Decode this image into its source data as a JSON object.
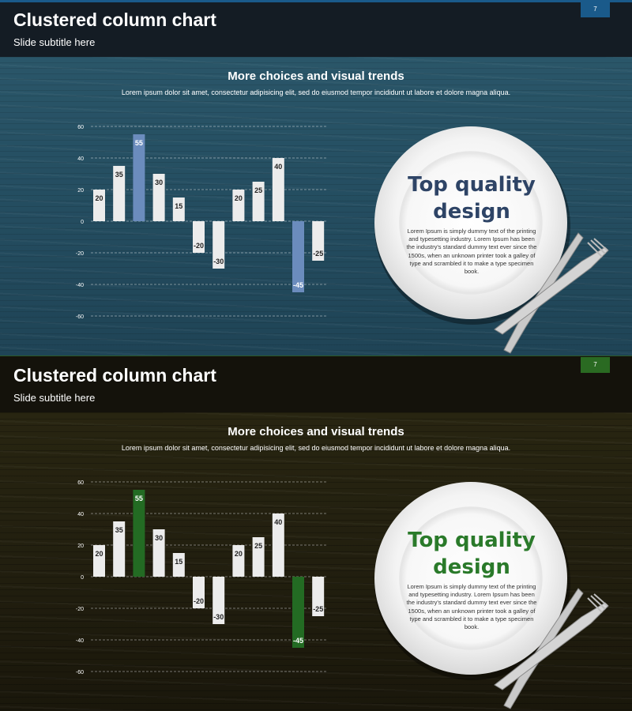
{
  "slides": [
    {
      "theme": "blue",
      "title": "Clustered column chart",
      "subtitle": "Slide subtitle here",
      "page_number": "7",
      "heading": "More choices and visual trends",
      "description": "Lorem ipsum dolor sit amet, consectetur adipisicing elit, sed do eiusmod tempor incididunt ut labore et dolore magna aliqua.",
      "plate_title": "Top quality design",
      "plate_body": "Lorem Ipsum is simply dummy text of the printing and typesetting industry. Lorem Ipsum has been the industry's standard dummy text ever since the 1500s, when an unknown printer took a galley of type and scrambled it to make a type specimen book.",
      "colors": {
        "accent": "#6b8cbd",
        "bar": "#ececec",
        "header": "#141c24",
        "page_badge": "#1a5a8a"
      }
    },
    {
      "theme": "green",
      "title": "Clustered column chart",
      "subtitle": "Slide subtitle here",
      "page_number": "7",
      "heading": "More choices and visual trends",
      "description": "Lorem ipsum dolor sit amet, consectetur adipisicing elit, sed do eiusmod tempor incididunt ut labore et dolore magna aliqua.",
      "plate_title": "Top quality design",
      "plate_body": "Lorem Ipsum is simply dummy text of the printing and typesetting industry. Lorem Ipsum has been the industry's standard dummy text ever since the 1500s, when an unknown printer took a galley of type and scrambled it to make a type specimen book.",
      "colors": {
        "accent": "#236b23",
        "bar": "#ececec",
        "header": "#14120b",
        "page_badge": "#2a6a22"
      }
    }
  ],
  "chart_data": [
    {
      "type": "bar",
      "values": [
        20,
        35,
        55,
        30,
        15,
        -20,
        -30,
        20,
        25,
        40,
        -45,
        -25
      ],
      "highlighted_indices": [
        2,
        10
      ],
      "yticks": [
        60,
        40,
        20,
        0,
        -20,
        -40,
        -60
      ],
      "ylim": [
        -60,
        60
      ],
      "grid": true,
      "data_labels": true
    },
    {
      "type": "bar",
      "values": [
        20,
        35,
        55,
        30,
        15,
        -20,
        -30,
        20,
        25,
        40,
        -45,
        -25
      ],
      "highlighted_indices": [
        2,
        10
      ],
      "yticks": [
        60,
        40,
        20,
        0,
        -20,
        -40,
        -60
      ],
      "ylim": [
        -60,
        60
      ],
      "grid": true,
      "data_labels": true
    }
  ]
}
